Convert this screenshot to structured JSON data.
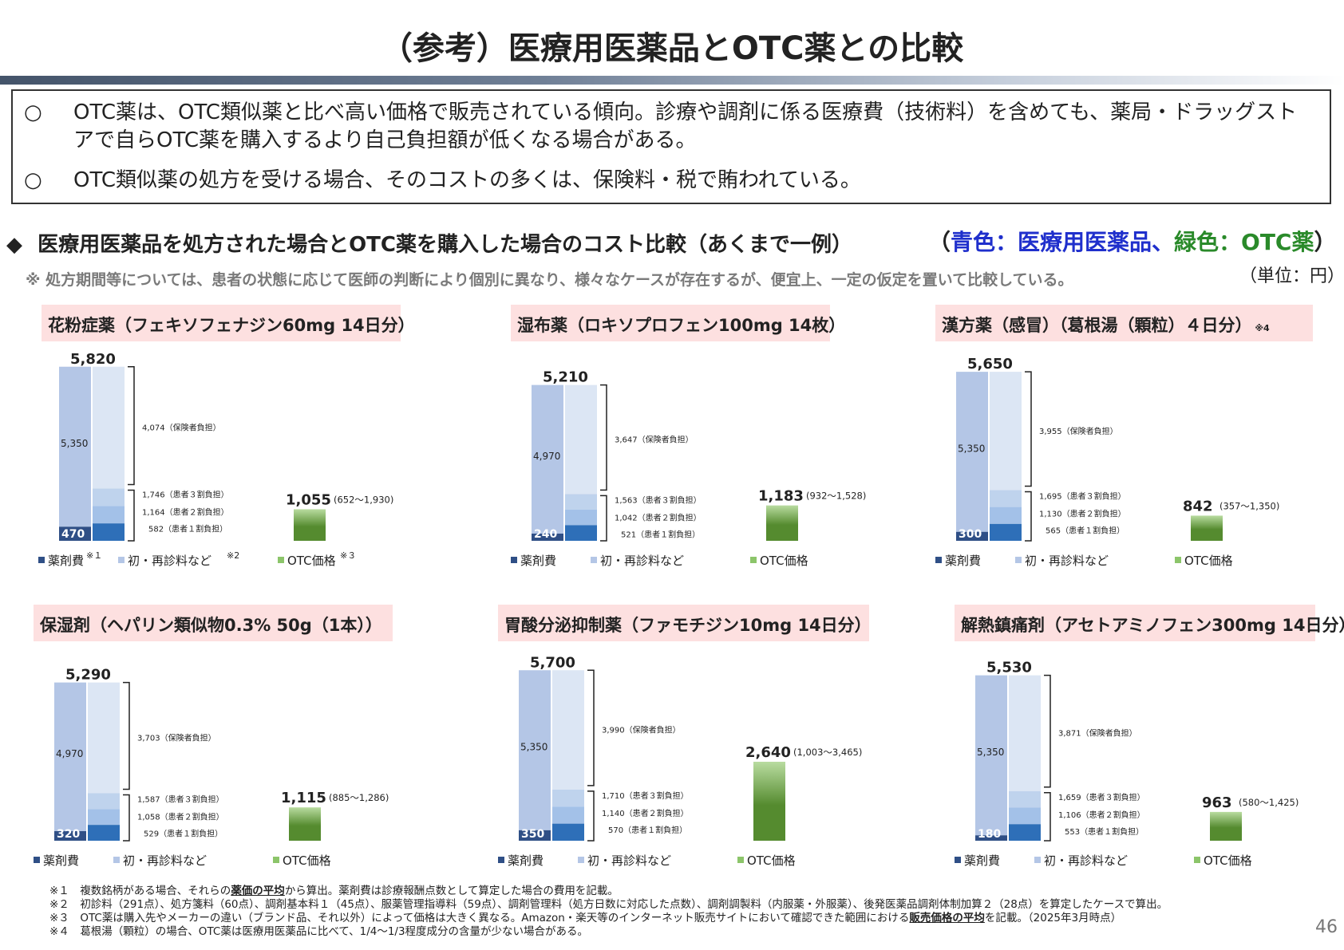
{
  "title": "（参考）医療用医薬品とOTC薬との比較",
  "summary": {
    "mark": "○",
    "items": [
      "OTC薬は、OTC類似薬と比べ高い価格で販売されている傾向。診療や調剤に係る医療費（技術料）を含めても、薬局・ドラッグストアで自らOTC薬を購入するより自己負担額が低くなる場合がある。",
      "OTC類似薬の処方を受ける場合、そのコストの多くは、保険料・税で賄われている。"
    ]
  },
  "section": {
    "bullet": "◆",
    "heading": "医療用医薬品を処方された場合とOTC薬を購入した場合のコスト比較（あくまで一例）",
    "legend_open": "（",
    "legend_blue": "青色：医療用医薬品、",
    "legend_green": "緑色：OTC薬",
    "legend_close": "）",
    "note": "※ 処方期間等については、患者の状態に応じて医師の判断により個別に異なり、様々なケースが存在するが、便宜上、一定の仮定を置いて比較している。",
    "unit": "（単位：円）"
  },
  "legend": {
    "drug": "薬剤費",
    "consult": "初・再診料など",
    "otc": "OTC価格",
    "sup_drug": "※１",
    "sup_consult": "※2",
    "sup_otc": "※３"
  },
  "labels": {
    "insurer": "（保険者負担）",
    "pat3": "（患者３割負担）",
    "pat2": "（患者２割負担）",
    "pat1": "（患者１割負担）"
  },
  "colors": {
    "drug": "#2e6fb8",
    "drug_band": "#b4c6e6",
    "consult": "#dce6f4",
    "fees_mid": "#bfd3ed",
    "fees_low": "#a3c1e8",
    "insurer_top": "#dce6f4",
    "otc_dark": "#558b2f",
    "otc_light": "#b9dca0",
    "title_bg": "#fde0e0"
  },
  "chart_data": [
    {
      "type": "bar",
      "title": "花粉症薬（フェキソフェナジン60mg 14日分）",
      "title_sup": "",
      "total": 5820,
      "total_label": "5,820",
      "drug_cost": 470,
      "drug_label": "470",
      "fees": 5350,
      "fees_label": "5,350",
      "insurer": 4074,
      "insurer_label": "4,074",
      "patient_30": 1746,
      "patient_30_label": "1,746",
      "patient_20": 1164,
      "patient_20_label": "1,164",
      "patient_10": 582,
      "patient_10_label": "582",
      "otc_price": 1055,
      "otc_label": "1,055",
      "otc_range": "(652～1,930)"
    },
    {
      "type": "bar",
      "title": "湿布薬（ロキソプロフェン100mg 14枚）",
      "title_sup": "",
      "total": 5210,
      "total_label": "5,210",
      "drug_cost": 240,
      "drug_label": "240",
      "fees": 4970,
      "fees_label": "4,970",
      "insurer": 3647,
      "insurer_label": "3,647",
      "patient_30": 1563,
      "patient_30_label": "1,563",
      "patient_20": 1042,
      "patient_20_label": "1,042",
      "patient_10": 521,
      "patient_10_label": "521",
      "otc_price": 1183,
      "otc_label": "1,183",
      "otc_range": "(932～1,528)"
    },
    {
      "type": "bar",
      "title": "漢方薬（感冒）（葛根湯（顆粒）４日分）",
      "title_sup": "※4",
      "total": 5650,
      "total_label": "5,650",
      "drug_cost": 300,
      "drug_label": "300",
      "fees": 5350,
      "fees_label": "5,350",
      "insurer": 3955,
      "insurer_label": "3,955",
      "patient_30": 1695,
      "patient_30_label": "1,695",
      "patient_20": 1130,
      "patient_20_label": "1,130",
      "patient_10": 565,
      "patient_10_label": "565",
      "otc_price": 842,
      "otc_label": "842",
      "otc_range": "(357～1,350)"
    },
    {
      "type": "bar",
      "title": "保湿剤（ヘパリン類似物0.3% 50g（1本））",
      "title_sup": "",
      "total": 5290,
      "total_label": "5,290",
      "drug_cost": 320,
      "drug_label": "320",
      "fees": 4970,
      "fees_label": "4,970",
      "insurer": 3703,
      "insurer_label": "3,703",
      "patient_30": 1587,
      "patient_30_label": "1,587",
      "patient_20": 1058,
      "patient_20_label": "1,058",
      "patient_10": 529,
      "patient_10_label": "529",
      "otc_price": 1115,
      "otc_label": "1,115",
      "otc_range": "(885～1,286)"
    },
    {
      "type": "bar",
      "title": "胃酸分泌抑制薬（ファモチジン10mg 14日分）",
      "title_sup": "",
      "total": 5700,
      "total_label": "5,700",
      "drug_cost": 350,
      "drug_label": "350",
      "fees": 5350,
      "fees_label": "5,350",
      "insurer": 3990,
      "insurer_label": "3,990",
      "patient_30": 1710,
      "patient_30_label": "1,710",
      "patient_20": 1140,
      "patient_20_label": "1,140",
      "patient_10": 570,
      "patient_10_label": "570",
      "otc_price": 2640,
      "otc_label": "2,640",
      "otc_range": "(1,003～3,465)"
    },
    {
      "type": "bar",
      "title": "解熱鎮痛剤（アセトアミノフェン300mg 14日分）",
      "title_sup": "",
      "total": 5530,
      "total_label": "5,530",
      "drug_cost": 180,
      "drug_label": "180",
      "fees": 5350,
      "fees_label": "5,350",
      "insurer": 3871,
      "insurer_label": "3,871",
      "patient_30": 1659,
      "patient_30_label": "1,659",
      "patient_20": 1106,
      "patient_20_label": "1,106",
      "patient_10": 553,
      "patient_10_label": "553",
      "otc_price": 963,
      "otc_label": "963",
      "otc_range": "(580～1,425)"
    }
  ],
  "footnotes": [
    {
      "mark": "※１",
      "pre": "複数銘柄がある場合、それらの",
      "bold": "薬価の平均",
      "post": "から算出。薬剤費は診療報酬点数として算定した場合の費用を記載。"
    },
    {
      "mark": "※２",
      "pre": "初診料（291点）、処方箋料（60点）、調剤基本料１（45点）、服薬管理指導料（59点）、調剤管理料（処方日数に対応した点数）、調剤調製料（内服薬・外服薬）、後発医薬品調剤体制加算２（28点）を算定したケースで算出。",
      "bold": "",
      "post": ""
    },
    {
      "mark": "※３",
      "pre": "OTC薬は購入先やメーカーの違い（ブランド品、それ以外）によって価格は大きく異なる。Amazon・楽天等のインターネット販売サイトにおいて確認できた範囲における",
      "bold": "販売価格の平均",
      "post": "を記載。（2025年3月時点）"
    },
    {
      "mark": "※４",
      "pre": "葛根湯（顆粒）の場合、OTC薬は医療用医薬品に比べて、1/4～1/3程度成分の含量が少ない場合がある。",
      "bold": "",
      "post": ""
    }
  ],
  "page_number": "46"
}
